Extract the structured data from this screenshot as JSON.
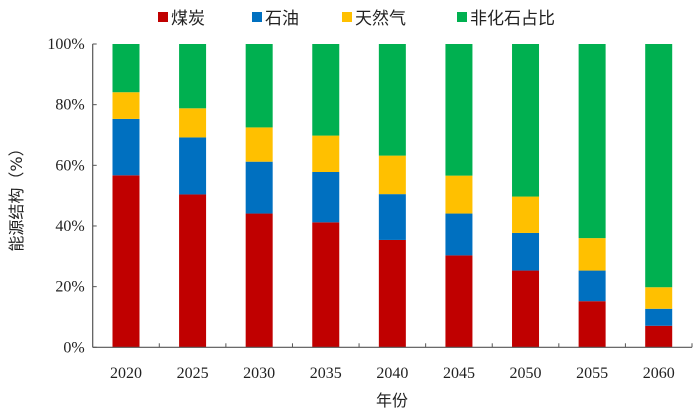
{
  "chart_data": {
    "type": "bar",
    "stacked": true,
    "xlabel": "年份",
    "ylabel": "能源结构（%）",
    "ylim": [
      0,
      100
    ],
    "yticks": [
      "0%",
      "20%",
      "40%",
      "60%",
      "80%",
      "100%"
    ],
    "grid": false,
    "legend_position": "top",
    "categories": [
      "2020",
      "2025",
      "2030",
      "2035",
      "2040",
      "2045",
      "2050",
      "2055",
      "2060"
    ],
    "series": [
      {
        "name": "煤炭",
        "color": "#c00000",
        "values": [
          56.7,
          50.4,
          44.1,
          41.2,
          35.4,
          30.3,
          25.3,
          15.2,
          7.1
        ]
      },
      {
        "name": "石油",
        "color": "#0070c0",
        "values": [
          18.6,
          18.8,
          17.1,
          16.6,
          15.1,
          13.8,
          12.4,
          10.1,
          5.6
        ]
      },
      {
        "name": "天然气",
        "color": "#ffc000",
        "values": [
          8.8,
          9.6,
          11.3,
          12.0,
          12.7,
          12.5,
          12.0,
          10.7,
          7.1
        ]
      },
      {
        "name": "非化石占比",
        "color": "#00b050",
        "values": [
          15.9,
          21.2,
          27.5,
          30.2,
          36.8,
          43.4,
          50.3,
          64.0,
          80.2
        ]
      }
    ]
  }
}
